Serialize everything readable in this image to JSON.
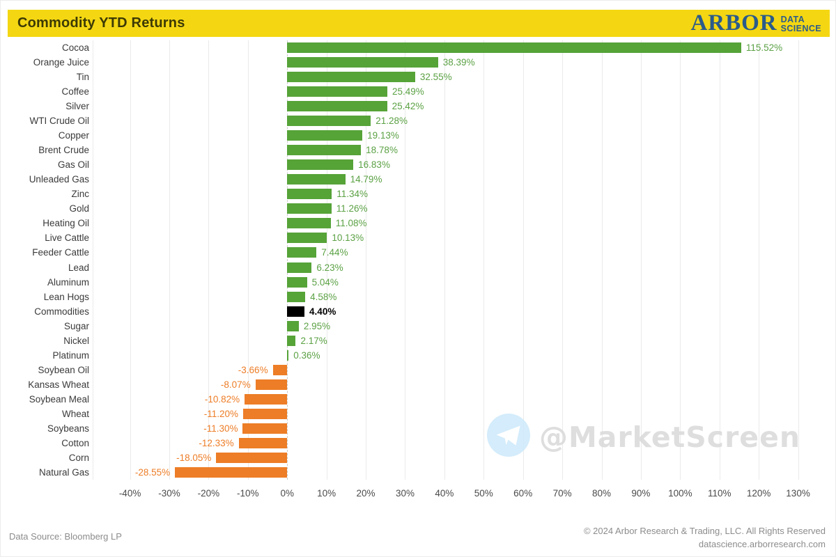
{
  "header": {
    "title": "Commodity YTD Returns",
    "logo": {
      "brand": "ARBOR",
      "sub_line1": "DATA",
      "sub_line2": "SCIENCE"
    }
  },
  "chart_data": {
    "type": "bar",
    "orientation": "horizontal",
    "title": "Commodity YTD Returns",
    "xlabel": "",
    "ylabel": "",
    "xlim": [
      -49.5,
      137.7
    ],
    "grid": true,
    "categories": [
      "Cocoa",
      "Orange Juice",
      "Tin",
      "Coffee",
      "Silver",
      "WTI Crude Oil",
      "Copper",
      "Brent Crude",
      "Gas Oil",
      "Unleaded Gas",
      "Zinc",
      "Gold",
      "Heating Oil",
      "Live Cattle",
      "Feeder Cattle",
      "Lead",
      "Aluminum",
      "Lean Hogs",
      "Commodities",
      "Sugar",
      "Nickel",
      "Platinum",
      "Soybean Oil",
      "Kansas Wheat",
      "Soybean Meal",
      "Wheat",
      "Soybeans",
      "Cotton",
      "Corn",
      "Natural Gas"
    ],
    "values": [
      115.52,
      38.39,
      32.55,
      25.49,
      25.42,
      21.28,
      19.13,
      18.78,
      16.83,
      14.79,
      11.34,
      11.26,
      11.08,
      10.13,
      7.44,
      6.23,
      5.04,
      4.58,
      4.4,
      2.95,
      2.17,
      0.36,
      -3.66,
      -8.07,
      -10.82,
      -11.2,
      -11.3,
      -12.33,
      -18.05,
      -28.55
    ],
    "value_labels": [
      "115.52%",
      "38.39%",
      "32.55%",
      "25.49%",
      "25.42%",
      "21.28%",
      "19.13%",
      "18.78%",
      "16.83%",
      "14.79%",
      "11.34%",
      "11.26%",
      "11.08%",
      "10.13%",
      "7.44%",
      "6.23%",
      "5.04%",
      "4.58%",
      "4.40%",
      "2.95%",
      "2.17%",
      "0.36%",
      "-3.66%",
      "-8.07%",
      "-10.82%",
      "-11.20%",
      "-11.30%",
      "-12.33%",
      "-18.05%",
      "-28.55%"
    ],
    "benchmark_category": "Commodities",
    "x_tick_values": [
      -40,
      -30,
      -20,
      -10,
      0,
      10,
      20,
      30,
      40,
      50,
      60,
      70,
      80,
      90,
      100,
      110,
      120,
      130
    ],
    "x_tick_labels": [
      "-40%",
      "-30%",
      "-20%",
      "-10%",
      "0%",
      "10%",
      "20%",
      "30%",
      "40%",
      "50%",
      "60%",
      "70%",
      "80%",
      "90%",
      "100%",
      "110%",
      "120%",
      "130%"
    ],
    "colors": {
      "positive": "#56a338",
      "negative": "#ed7d26",
      "benchmark": "#000000",
      "positive_label": "#5ba144",
      "negative_label": "#ed7d26",
      "benchmark_label": "#000000"
    },
    "legend_position": "none"
  },
  "watermark": {
    "text": "@MarketScreen",
    "icon": "telegram-icon"
  },
  "footer": {
    "source": "Data Source: Bloomberg LP",
    "copyright": "© 2024 Arbor Research & Trading, LLC. All Rights Reserved",
    "website": "datascience.arborresearch.com"
  }
}
